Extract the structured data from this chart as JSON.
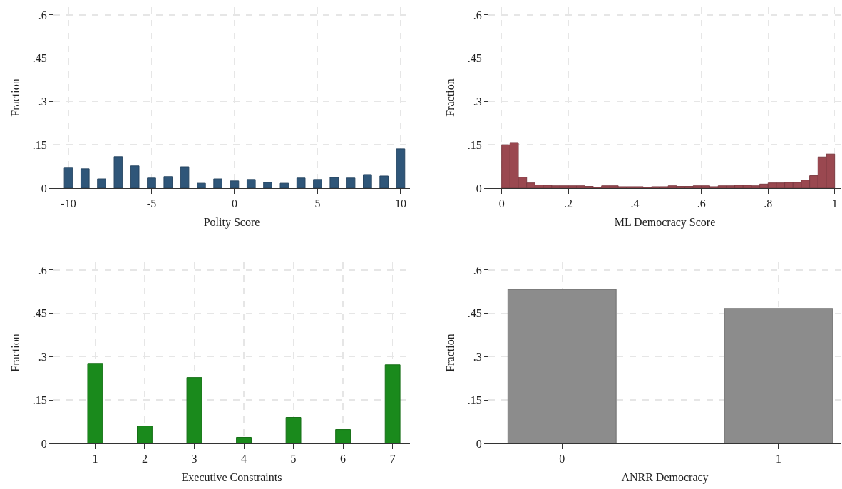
{
  "chart_data": [
    {
      "type": "bar",
      "xlabel": "Polity Score",
      "ylabel": "Fraction",
      "color": "#2f5679",
      "x": [
        -10,
        -9,
        -8,
        -7,
        -6,
        -5,
        -4,
        -3,
        -2,
        -1,
        0,
        1,
        2,
        3,
        4,
        5,
        6,
        7,
        8,
        9,
        10
      ],
      "values": [
        0.072,
        0.067,
        0.032,
        0.109,
        0.077,
        0.035,
        0.04,
        0.074,
        0.017,
        0.032,
        0.025,
        0.03,
        0.02,
        0.017,
        0.035,
        0.03,
        0.037,
        0.035,
        0.047,
        0.042,
        0.136
      ],
      "xlim": [
        -10.9,
        10.56
      ],
      "xticks": [
        -10,
        -5,
        0,
        5,
        10
      ],
      "ylim": [
        0,
        0.627
      ],
      "yticks": [
        {
          "value": 0,
          "label": "0"
        },
        {
          "value": 0.15,
          "label": ".15"
        },
        {
          "value": 0.3,
          "label": ".3"
        },
        {
          "value": 0.45,
          "label": ".45"
        },
        {
          "value": 0.6,
          "label": ".6"
        }
      ],
      "grid": true
    },
    {
      "type": "histogram",
      "xlabel": "ML Democracy Score",
      "ylabel": "Fraction",
      "color": "#9a4850",
      "bins": [
        0,
        0.025,
        0.05,
        0.075,
        0.1,
        0.125,
        0.15,
        0.175,
        0.2,
        0.225,
        0.25,
        0.275,
        0.3,
        0.325,
        0.35,
        0.375,
        0.4,
        0.425,
        0.45,
        0.475,
        0.5,
        0.525,
        0.55,
        0.575,
        0.6,
        0.625,
        0.65,
        0.675,
        0.7,
        0.725,
        0.75,
        0.775,
        0.8,
        0.825,
        0.85,
        0.875,
        0.9,
        0.925,
        0.95,
        0.975,
        1
      ],
      "values": [
        0.15,
        0.158,
        0.038,
        0.018,
        0.011,
        0.01,
        0.008,
        0.008,
        0.008,
        0.008,
        0.006,
        0.003,
        0.008,
        0.008,
        0.005,
        0.005,
        0.005,
        0.003,
        0.005,
        0.005,
        0.008,
        0.006,
        0.006,
        0.008,
        0.008,
        0.005,
        0.008,
        0.008,
        0.01,
        0.01,
        0.008,
        0.014,
        0.018,
        0.018,
        0.02,
        0.02,
        0.028,
        0.043,
        0.108,
        0.118
      ],
      "xlim": [
        -0.04,
        1.02
      ],
      "xticks": [
        0,
        {
          "value": 0.2,
          "label": ".2"
        },
        {
          "value": 0.4,
          "label": ".4"
        },
        {
          "value": 0.6,
          "label": ".6"
        },
        {
          "value": 0.8,
          "label": ".8"
        },
        1
      ],
      "ylim": [
        0,
        0.627
      ],
      "yticks": [
        {
          "value": 0,
          "label": "0"
        },
        {
          "value": 0.15,
          "label": ".15"
        },
        {
          "value": 0.3,
          "label": ".3"
        },
        {
          "value": 0.45,
          "label": ".45"
        },
        {
          "value": 0.6,
          "label": ".6"
        }
      ],
      "grid": true
    },
    {
      "type": "bar",
      "xlabel": "Executive Constraints",
      "ylabel": "Fraction",
      "color": "#1a8a1c",
      "x": [
        1,
        2,
        3,
        4,
        5,
        6,
        7
      ],
      "values": [
        0.277,
        0.06,
        0.228,
        0.021,
        0.09,
        0.048,
        0.272
      ],
      "xlim": [
        0.16,
        7.35
      ],
      "xticks": [
        1,
        2,
        3,
        4,
        5,
        6,
        7
      ],
      "ylim": [
        0,
        0.627
      ],
      "yticks": [
        {
          "value": 0,
          "label": "0"
        },
        {
          "value": 0.15,
          "label": ".15"
        },
        {
          "value": 0.3,
          "label": ".3"
        },
        {
          "value": 0.45,
          "label": ".45"
        },
        {
          "value": 0.6,
          "label": ".6"
        }
      ],
      "grid": true
    },
    {
      "type": "bar",
      "xlabel": "ANRR Democracy",
      "ylabel": "Fraction",
      "color": "#8c8c8c",
      "x": [
        0,
        1
      ],
      "values": [
        0.533,
        0.467
      ],
      "xlim": [
        -0.34,
        1.29
      ],
      "xticks": [
        0,
        1
      ],
      "ylim": [
        0,
        0.627
      ],
      "yticks": [
        {
          "value": 0,
          "label": "0"
        },
        {
          "value": 0.15,
          "label": ".15"
        },
        {
          "value": 0.3,
          "label": ".3"
        },
        {
          "value": 0.45,
          "label": ".45"
        },
        {
          "value": 0.6,
          "label": ".6"
        }
      ],
      "grid": true
    }
  ]
}
